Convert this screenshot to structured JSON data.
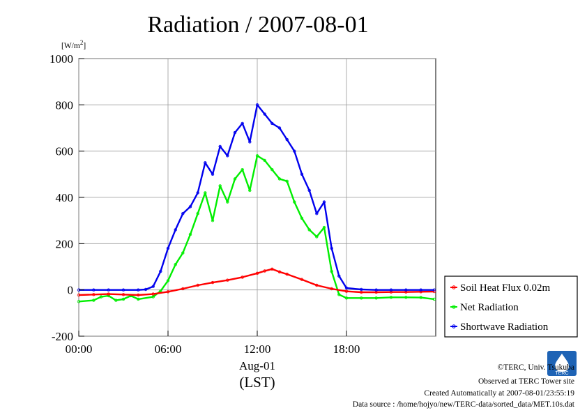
{
  "chart_data": {
    "type": "line",
    "title": "Radiation / 2007-08-01",
    "unit_label": "[W/m2]",
    "unit_base": "[W/m",
    "unit_sup": "2",
    "unit_close": "]",
    "xlabel": "Aug-01",
    "xlabel2": "(LST)",
    "x_unit": "hours (LST)",
    "xlim": [
      0,
      24
    ],
    "ylim": [
      -200,
      1000
    ],
    "grid": true,
    "legend_position": "bottom-right-outside",
    "x_ticks": [
      0,
      6,
      12,
      18
    ],
    "x_tick_labels": [
      "00:00",
      "06:00",
      "12:00",
      "18:00"
    ],
    "y_ticks": [
      -200,
      0,
      200,
      400,
      600,
      800,
      1000
    ],
    "y_tick_labels": [
      "-200",
      "0",
      "200",
      "400",
      "600",
      "800",
      "1000"
    ],
    "series": [
      {
        "name": "Soil Heat Flux 0.02m",
        "color": "#ff0000",
        "x": [
          0,
          1,
          2,
          3,
          4,
          5,
          6,
          7,
          8,
          9,
          10,
          11,
          12,
          12.5,
          13,
          13.5,
          14,
          15,
          16,
          17,
          18,
          19,
          20,
          21,
          22,
          23,
          23.9
        ],
        "y": [
          -22,
          -20,
          -18,
          -20,
          -22,
          -18,
          -8,
          5,
          20,
          32,
          42,
          55,
          72,
          82,
          90,
          78,
          68,
          45,
          20,
          5,
          -6,
          -10,
          -10,
          -9,
          -9,
          -8,
          -7
        ]
      },
      {
        "name": "Net Radiation",
        "color": "#00ee00",
        "x": [
          0,
          1,
          1.5,
          2,
          2.5,
          3,
          3.5,
          4,
          5,
          5.5,
          6,
          6.5,
          7,
          7.5,
          8,
          8.5,
          9,
          9.5,
          10,
          10.5,
          11,
          11.5,
          12,
          12.5,
          13,
          13.5,
          14,
          14.5,
          15,
          15.5,
          16,
          16.5,
          17,
          17.5,
          18,
          19,
          20,
          21,
          22,
          23,
          23.9
        ],
        "y": [
          -50,
          -45,
          -30,
          -25,
          -45,
          -40,
          -25,
          -40,
          -30,
          -5,
          40,
          110,
          160,
          240,
          330,
          420,
          300,
          450,
          380,
          480,
          520,
          430,
          580,
          560,
          520,
          480,
          470,
          380,
          310,
          260,
          230,
          270,
          80,
          -20,
          -35,
          -35,
          -35,
          -32,
          -32,
          -33,
          -40
        ]
      },
      {
        "name": "Shortwave Radiation",
        "color": "#0000ee",
        "x": [
          0,
          1,
          2,
          3,
          4,
          4.5,
          5,
          5.5,
          6,
          6.5,
          7,
          7.5,
          8,
          8.5,
          9,
          9.5,
          10,
          10.5,
          11,
          11.5,
          12,
          12.5,
          13,
          13.5,
          14,
          14.5,
          15,
          15.5,
          16,
          16.5,
          17,
          17.5,
          18,
          19,
          20,
          21,
          22,
          23,
          23.9
        ],
        "y": [
          0,
          0,
          0,
          0,
          0,
          2,
          15,
          80,
          180,
          260,
          330,
          360,
          420,
          550,
          500,
          620,
          580,
          680,
          720,
          640,
          800,
          760,
          720,
          700,
          650,
          600,
          500,
          430,
          330,
          380,
          180,
          60,
          8,
          2,
          0,
          0,
          0,
          0,
          0
        ]
      }
    ]
  },
  "footer": {
    "copyright": "©TERC, Univ. Tsukuba",
    "observed": "Observed at TERC Tower site",
    "created": "Created Automatically at 2007-08-01/23:55:19",
    "source": "Data source : /home/hojyo/new/TERC-data/sorted_data/MET.10s.dat",
    "logo_text": "TERC"
  }
}
